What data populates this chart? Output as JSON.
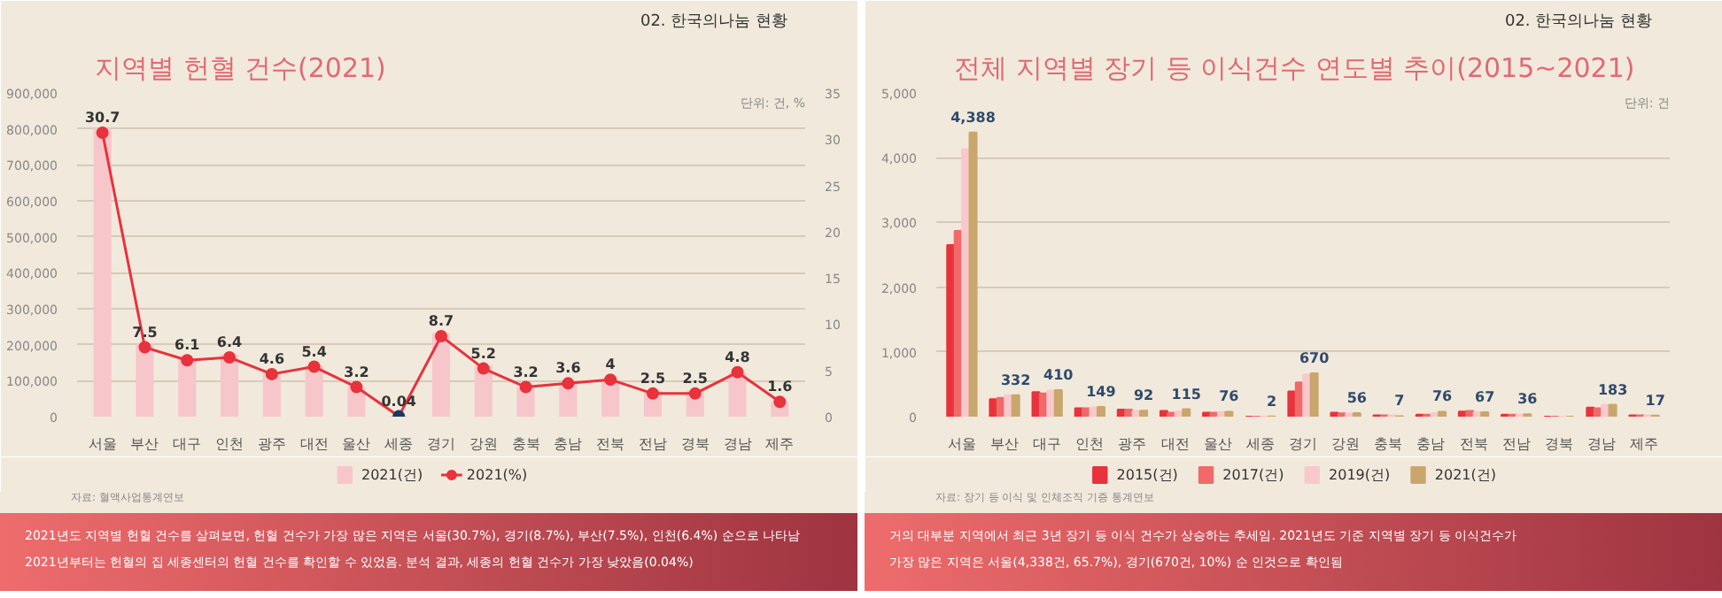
{
  "chart_data": [
    {
      "type": "bar",
      "title": "지역별 헌혈 건수(2021)",
      "annotations": [
        "02. 한국의나눔 현황",
        "단위: 건, %",
        "자료: 혈액사업통계연보",
        "2021년도 지역별 헌혈 건수를 살펴보면, 헌혈 건수가 가장 많은 지역은 서울(30.7%), 경기(8.7%), 부산(7.5%), 인천(6.4%) 순으로 나타남\n2021년부터는 헌혈의 집 세종센터의 헌혈 건수를 확인할 수 있었음. 분석 결과, 세종의 헌혈 건수가 가장 낮았음(0.04%)"
      ],
      "categories": [
        "서울",
        "부산",
        "대구",
        "인천",
        "광주",
        "대전",
        "울산",
        "세종",
        "경기",
        "강원",
        "충북",
        "충남",
        "전북",
        "전남",
        "경북",
        "경남",
        "제주"
      ],
      "series": [
        {
          "name": "2021(건)",
          "type": "bar",
          "color": "#f7c6cb",
          "values": [
            800000,
            200000,
            160000,
            170000,
            120000,
            140000,
            80000,
            null,
            230000,
            140000,
            80000,
            90000,
            100000,
            70000,
            70000,
            120000,
            40000
          ]
        },
        {
          "name": "2021(%)",
          "type": "line",
          "axis": "y2",
          "color": "#e8323c",
          "colors": [
            "#e8323c",
            "#e8323c",
            "#e8323c",
            "#e8323c",
            "#e8323c",
            "#e8323c",
            "#e8323c",
            "#1f3864",
            "#e8323c",
            "#e8323c",
            "#e8323c",
            "#e8323c",
            "#e8323c",
            "#e8323c",
            "#e8323c",
            "#e8323c",
            "#e8323c"
          ],
          "values": [
            30.7,
            7.5,
            6.1,
            6.4,
            4.6,
            5.4,
            3.2,
            0.04,
            8.7,
            5.2,
            3.2,
            3.6,
            4,
            2.5,
            2.5,
            4.8,
            1.6
          ],
          "value_labels": [
            "30.7",
            "7.5",
            "6.1",
            "6.4",
            "4.6",
            "5.4",
            "3.2",
            "0.04",
            "8.7",
            "5.2",
            "3.2",
            "3.6",
            "4",
            "2.5",
            "2.5",
            "4.8",
            "1.6"
          ]
        }
      ],
      "ylim": [
        0,
        900000
      ],
      "yticks": [
        {
          "value": 0,
          "label": "0"
        },
        {
          "value": 100000,
          "label": "100,000"
        },
        {
          "value": 200000,
          "label": "200,000"
        },
        {
          "value": 300000,
          "label": "300,000"
        },
        {
          "value": 400000,
          "label": "400,000"
        },
        {
          "value": 500000,
          "label": "500,000"
        },
        {
          "value": 600000,
          "label": "600,000"
        },
        {
          "value": 700000,
          "label": "700,000"
        },
        {
          "value": 800000,
          "label": "800,000"
        },
        {
          "value": 900000,
          "label": "900,000"
        }
      ],
      "y2lim": [
        0,
        35
      ],
      "y2ticks": [
        0,
        5,
        10,
        15,
        20,
        25,
        30,
        35
      ],
      "grid": "y",
      "legend": "bottom",
      "marker": "circle"
    },
    {
      "type": "bar",
      "title": "전체 지역별 장기 등 이식건수 연도별 추이(2015~2021)",
      "annotations": [
        "02. 한국의나눔 현황",
        "단위: 건",
        "자료: 장기 등 이식 및 인체조직 기증 통계연보",
        "거의 대부분 지역에서 최근 3년 장기 등 이식 건수가 상승하는 추세임. 2021년도 기준 지역별 장기 등 이식건수가\n가장 많은 지역은 서울(4,338건, 65.7%), 경기(670건, 10%) 순 인것으로 확인됨"
      ],
      "categories": [
        "서울",
        "부산",
        "대구",
        "인천",
        "광주",
        "대전",
        "울산",
        "세종",
        "경기",
        "강원",
        "충북",
        "충남",
        "전북",
        "전남",
        "경북",
        "경남",
        "제주"
      ],
      "series": [
        {
          "name": "2015(건)",
          "color": "#e8323c",
          "values": [
            2650,
            270,
            380,
            130,
            110,
            90,
            60,
            0,
            390,
            60,
            20,
            30,
            80,
            30,
            0,
            140,
            20
          ]
        },
        {
          "name": "2017(건)",
          "color": "#f06a6a",
          "values": [
            2870,
            290,
            360,
            130,
            110,
            60,
            60,
            0,
            530,
            50,
            20,
            30,
            90,
            30,
            0,
            130,
            20
          ]
        },
        {
          "name": "2019(건)",
          "color": "#f9c8cc",
          "values": [
            4130,
            330,
            400,
            140,
            90,
            80,
            70,
            0,
            650,
            50,
            20,
            50,
            70,
            30,
            0,
            180,
            20
          ]
        },
        {
          "name": "2021(건)",
          "color": "#c9a66b",
          "values": [
            4388,
            332,
            410,
            149,
            92,
            115,
            76,
            2,
            670,
            56,
            7,
            76,
            67,
            36,
            0,
            183,
            17
          ],
          "value_labels": [
            "4,388",
            "332",
            "410",
            "149",
            "92",
            "115",
            "76",
            "2",
            "670",
            "56",
            "7",
            "76",
            "67",
            "36",
            null,
            "183",
            "17"
          ]
        }
      ],
      "ylim": [
        0,
        5000
      ],
      "yticks": [
        {
          "value": 0,
          "label": "0"
        },
        {
          "value": 1000,
          "label": "1,000"
        },
        {
          "value": 2000,
          "label": "2,000"
        },
        {
          "value": 3000,
          "label": "3,000"
        },
        {
          "value": 4000,
          "label": "4,000"
        },
        {
          "value": 5000,
          "label": "5,000"
        }
      ],
      "grid": "y",
      "legend": "bottom"
    }
  ]
}
